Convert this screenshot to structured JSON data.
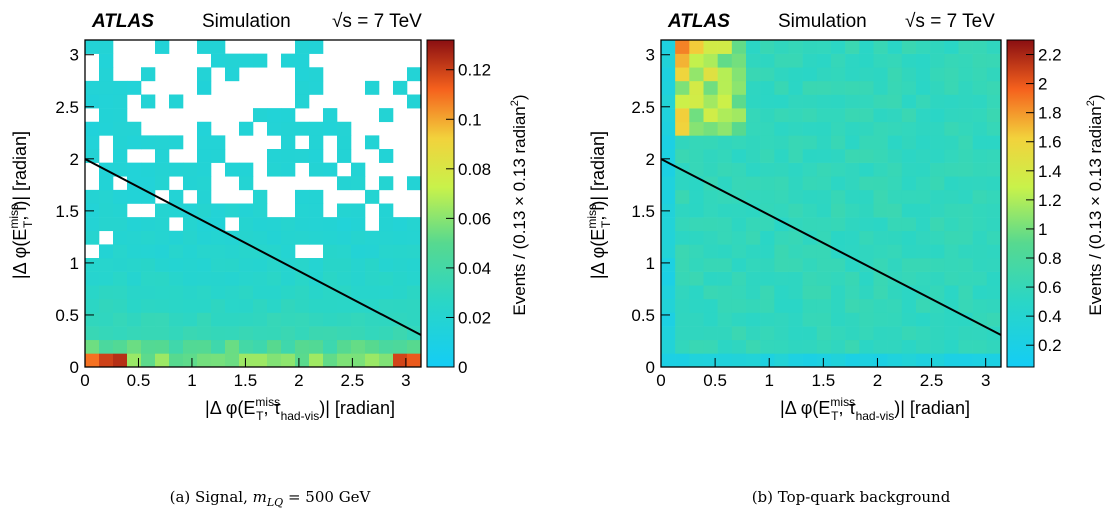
{
  "chart_data": [
    {
      "type": "heatmap",
      "id": "a",
      "header": {
        "experiment": "ATLAS",
        "label": "Simulation",
        "energy": "√s = 7 TeV"
      },
      "xlabel": "|Δ φ(E_T^miss, τ_had-vis)| [radian]",
      "ylabel": "|Δ φ(E_T^miss, l)| [radian]",
      "zlabel": "Events / (0.13 × 0.13 radian²)",
      "xlim": [
        0,
        3.1416
      ],
      "ylim": [
        0,
        3.1416
      ],
      "zlim": [
        0,
        0.132
      ],
      "x_ticks": [
        "0",
        "0.5",
        "1",
        "1.5",
        "2",
        "2.5",
        "3"
      ],
      "y_ticks": [
        "0",
        "0.5",
        "1",
        "1.5",
        "2",
        "2.5",
        "3"
      ],
      "z_ticks": [
        "0",
        "0.02",
        "0.04",
        "0.06",
        "0.08",
        "0.1",
        "0.12"
      ],
      "bins": 24,
      "empty_bins_white": true,
      "cut_line": {
        "x": [
          0,
          3.1416
        ],
        "y": [
          2.0,
          0.5
        ]
      },
      "caption": "(a) Signal, m_LQ = 500 GeV"
    },
    {
      "type": "heatmap",
      "id": "b",
      "header": {
        "experiment": "ATLAS",
        "label": "Simulation",
        "energy": "√s = 7 TeV"
      },
      "xlabel": "|Δ φ(E_T^miss, τ_had-vis)| [radian]",
      "ylabel": "|Δ φ(E_T^miss, l)| [radian]",
      "zlabel": "Events / (0.13 × 0.13 radian²)",
      "xlim": [
        0,
        3.1416
      ],
      "ylim": [
        0,
        3.1416
      ],
      "zlim": [
        0.05,
        2.3
      ],
      "x_ticks": [
        "0",
        "0.5",
        "1",
        "1.5",
        "2",
        "2.5",
        "3"
      ],
      "y_ticks": [
        "0",
        "0.5",
        "1",
        "1.5",
        "2",
        "2.5",
        "3"
      ],
      "z_ticks": [
        "0.2",
        "0.4",
        "0.6",
        "0.8",
        "1",
        "1.2",
        "1.4",
        "1.6",
        "1.8",
        "2",
        "2.2"
      ],
      "bins": 24,
      "empty_bins_white": false,
      "cut_line": {
        "x": [
          0,
          3.1416
        ],
        "y": [
          2.0,
          0.5
        ]
      },
      "caption": "(b) Top-quark background"
    }
  ]
}
